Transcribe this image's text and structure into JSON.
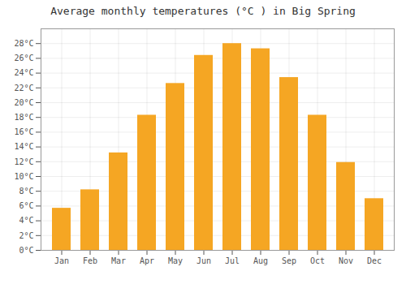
{
  "chart_data": {
    "type": "bar",
    "title": "Average monthly temperatures (°C ) in Big Spring",
    "categories": [
      "Jan",
      "Feb",
      "Mar",
      "Apr",
      "May",
      "Jun",
      "Jul",
      "Aug",
      "Sep",
      "Oct",
      "Nov",
      "Dec"
    ],
    "values": [
      5.7,
      8.2,
      13.2,
      18.3,
      22.6,
      26.4,
      28.0,
      27.3,
      23.4,
      18.3,
      11.9,
      7.0
    ],
    "color": "#F5A623",
    "ylim": [
      0,
      30
    ],
    "yticks": [
      {
        "value": 0,
        "label": "0°C"
      },
      {
        "value": 2,
        "label": "2°C"
      },
      {
        "value": 4,
        "label": "4°C"
      },
      {
        "value": 6,
        "label": "6°C"
      },
      {
        "value": 8,
        "label": "8°C"
      },
      {
        "value": 10,
        "label": "10°C"
      },
      {
        "value": 12,
        "label": "12°C"
      },
      {
        "value": 14,
        "label": "14°C"
      },
      {
        "value": 16,
        "label": "16°C"
      },
      {
        "value": 18,
        "label": "18°C"
      },
      {
        "value": 20,
        "label": "20°C"
      },
      {
        "value": 22,
        "label": "22°C"
      },
      {
        "value": 24,
        "label": "24°C"
      },
      {
        "value": 26,
        "label": "26°C"
      },
      {
        "value": 28,
        "label": "28°C"
      }
    ],
    "grid": true
  }
}
